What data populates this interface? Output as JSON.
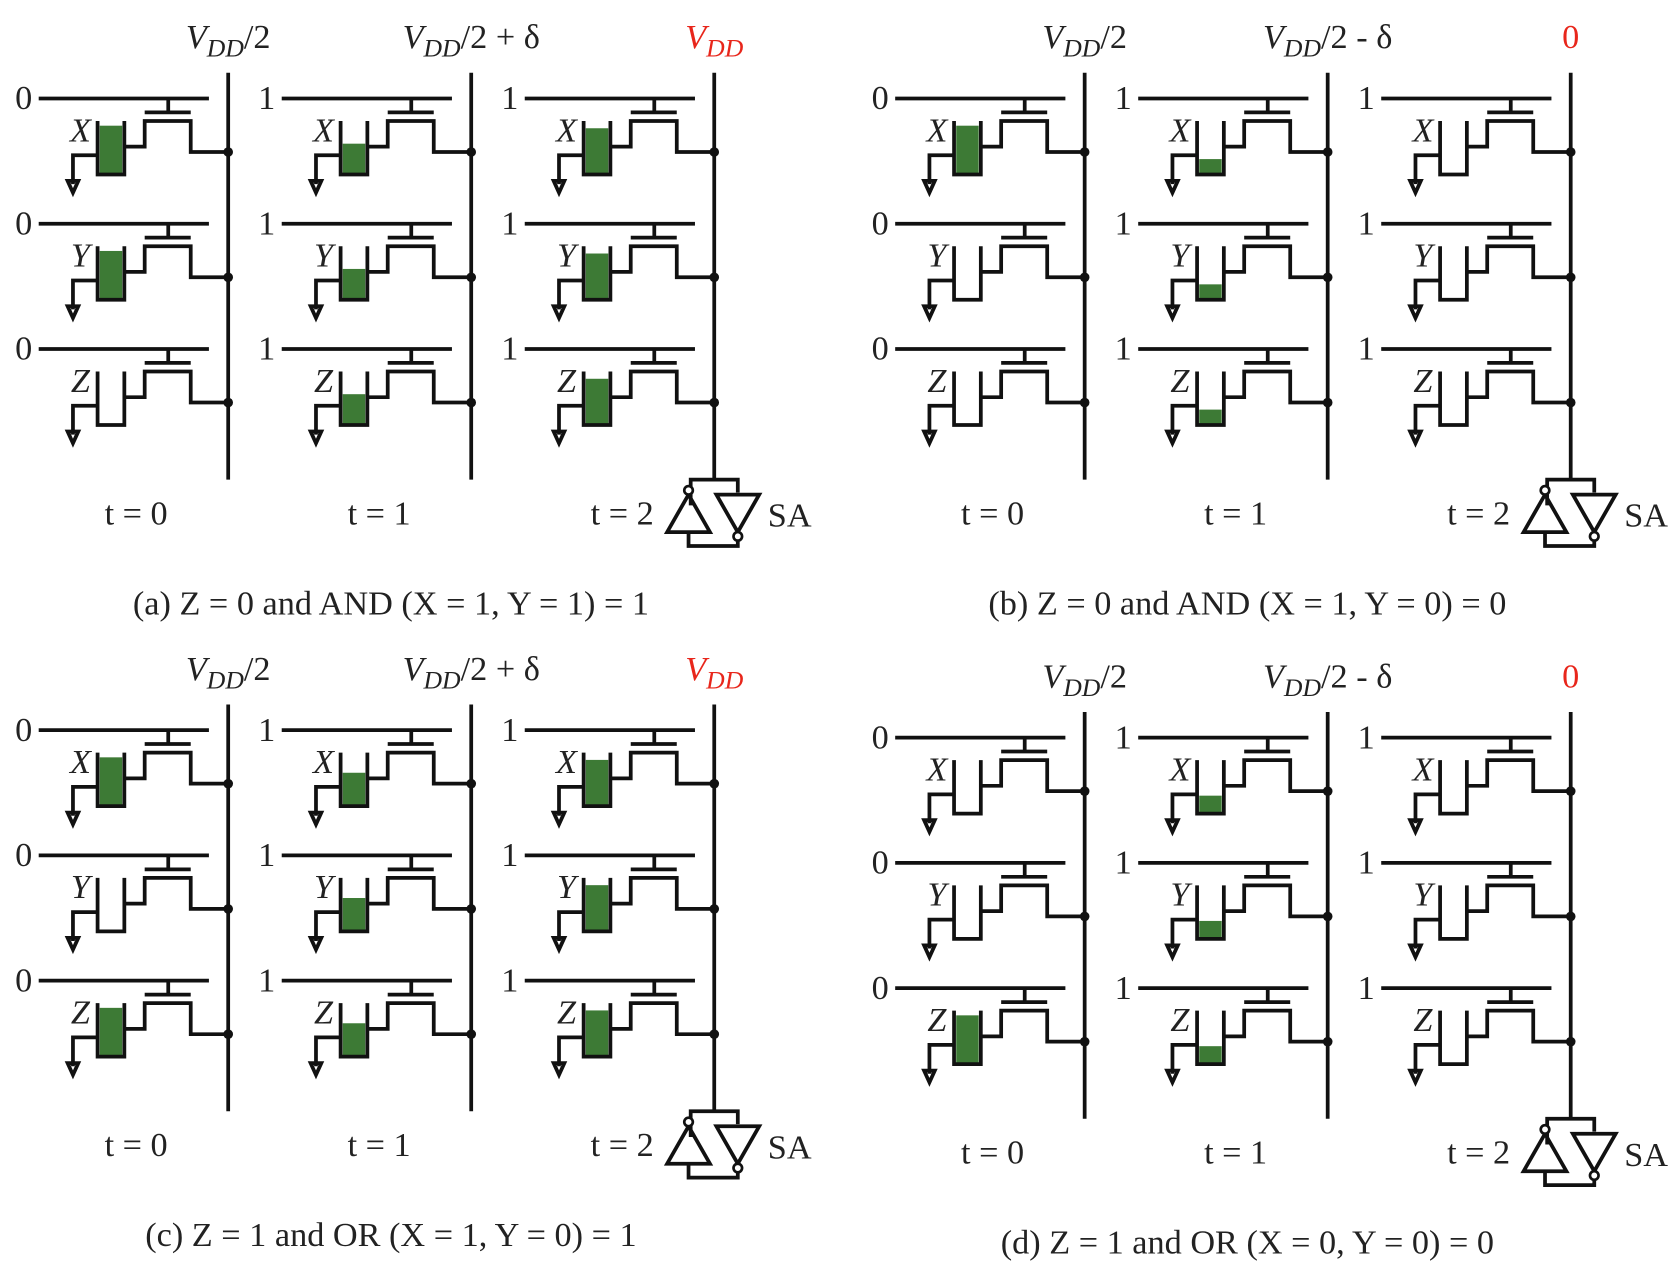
{
  "panels": [
    {
      "caption": "(a) Z = 0 and AND (X = 1, Y = 1) = 1",
      "headers": [
        {
          "base": "V",
          "sub": "DD",
          "rest": "/2"
        },
        {
          "base": "V",
          "sub": "DD",
          "rest": "/2 + δ"
        },
        {
          "base": "V",
          "sub": "DD",
          "color": "#e8261b"
        }
      ],
      "columns": [
        {
          "time": "t = 0",
          "wordlines": [
            "0",
            "0",
            "0"
          ]
        },
        {
          "time": "t = 1",
          "wordlines": [
            "1",
            "1",
            "1"
          ]
        },
        {
          "time": "t = 2",
          "wordlines": [
            "1",
            "1",
            "1"
          ]
        }
      ]
    },
    {
      "caption": "(b) Z = 0 and AND (X = 1, Y = 0) = 0",
      "headers": [
        {
          "base": "V",
          "sub": "DD",
          "rest": "/2"
        },
        {
          "base": "V",
          "sub": "DD",
          "rest": "/2 - δ"
        },
        {
          "rest": "0",
          "color": "#e8261b"
        }
      ],
      "columns": [
        {
          "time": "t = 0",
          "wordlines": [
            "0",
            "0",
            "0"
          ]
        },
        {
          "time": "t = 1",
          "wordlines": [
            "1",
            "1",
            "1"
          ]
        },
        {
          "time": "t = 2",
          "wordlines": [
            "1",
            "1",
            "1"
          ]
        }
      ]
    },
    {
      "caption": "(c) Z = 1 and OR (X = 1, Y = 0) = 1",
      "headers": [
        {
          "base": "V",
          "sub": "DD",
          "rest": "/2"
        },
        {
          "base": "V",
          "sub": "DD",
          "rest": "/2 + δ"
        },
        {
          "base": "V",
          "sub": "DD",
          "color": "#e8261b"
        }
      ],
      "columns": [
        {
          "time": "t = 0",
          "wordlines": [
            "0",
            "0",
            "0"
          ]
        },
        {
          "time": "t = 1",
          "wordlines": [
            "1",
            "1",
            "1"
          ]
        },
        {
          "time": "t = 2",
          "wordlines": [
            "1",
            "1",
            "1"
          ]
        }
      ]
    },
    {
      "caption": "(d) Z = 1 and OR (X = 0, Y = 0) = 0",
      "headers": [
        {
          "base": "V",
          "sub": "DD",
          "rest": "/2"
        },
        {
          "base": "V",
          "sub": "DD",
          "rest": "/2 - δ"
        },
        {
          "rest": "0",
          "color": "#e8261b"
        }
      ],
      "columns": [
        {
          "time": "t = 0",
          "wordlines": [
            "0",
            "0",
            "0"
          ]
        },
        {
          "time": "t = 1",
          "wordlines": [
            "1",
            "1",
            "1"
          ]
        },
        {
          "time": "t = 2",
          "wordlines": [
            "1",
            "1",
            "1"
          ]
        }
      ]
    }
  ],
  "cells": [
    "X",
    "Y",
    "Z"
  ],
  "amp": "SA",
  "charge_color": "#3d7a35"
}
